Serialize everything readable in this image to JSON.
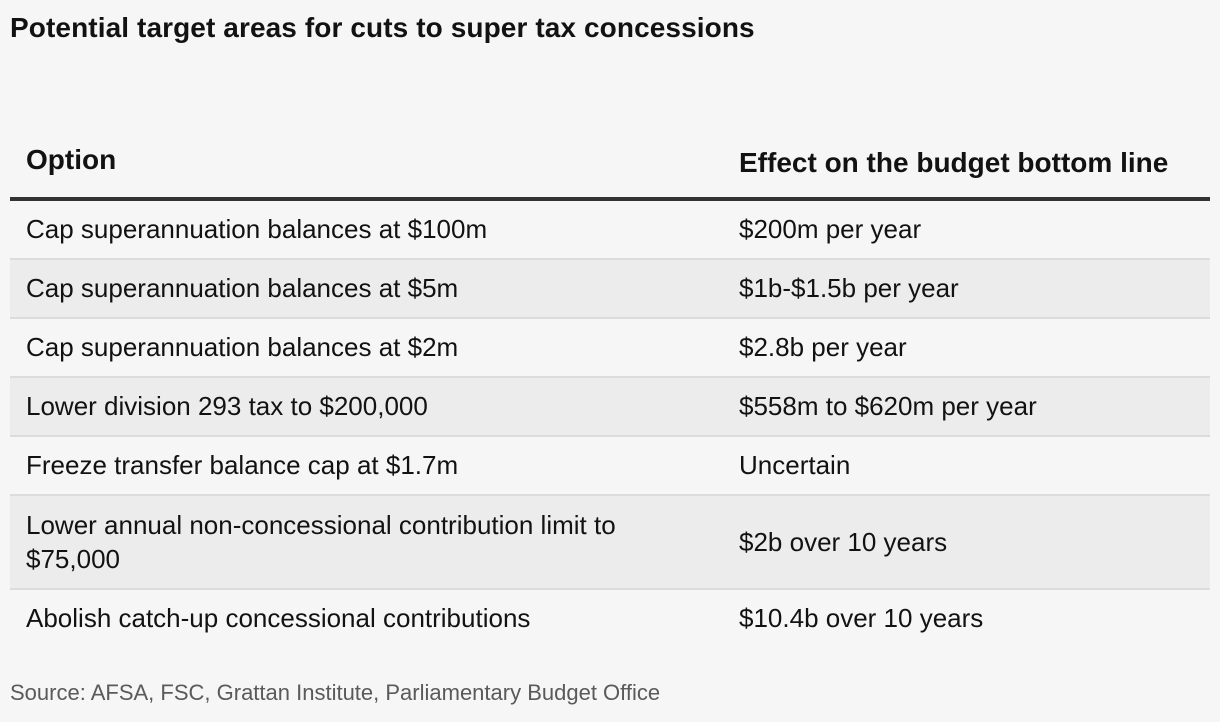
{
  "title": "Potential target areas for cuts to super tax concessions",
  "table": {
    "headers": [
      "Option",
      "Effect on the budget bottom line"
    ],
    "rows": [
      [
        "Cap superannuation balances at $100m",
        "$200m per year"
      ],
      [
        "Cap superannuation balances at $5m",
        "$1b-$1.5b per year"
      ],
      [
        "Cap superannuation balances at $2m",
        "$2.8b per year"
      ],
      [
        "Lower division 293 tax to $200,000",
        "$558m to $620m per year"
      ],
      [
        "Freeze transfer balance cap at $1.7m",
        "Uncertain"
      ],
      [
        "Lower annual non-concessional contribution limit to $75,000",
        "$2b over 10 years"
      ],
      [
        "Abolish catch-up concessional contributions",
        "$10.4b over 10 years"
      ]
    ]
  },
  "source": "Source: AFSA, FSC, Grattan Institute, Parliamentary Budget Office"
}
